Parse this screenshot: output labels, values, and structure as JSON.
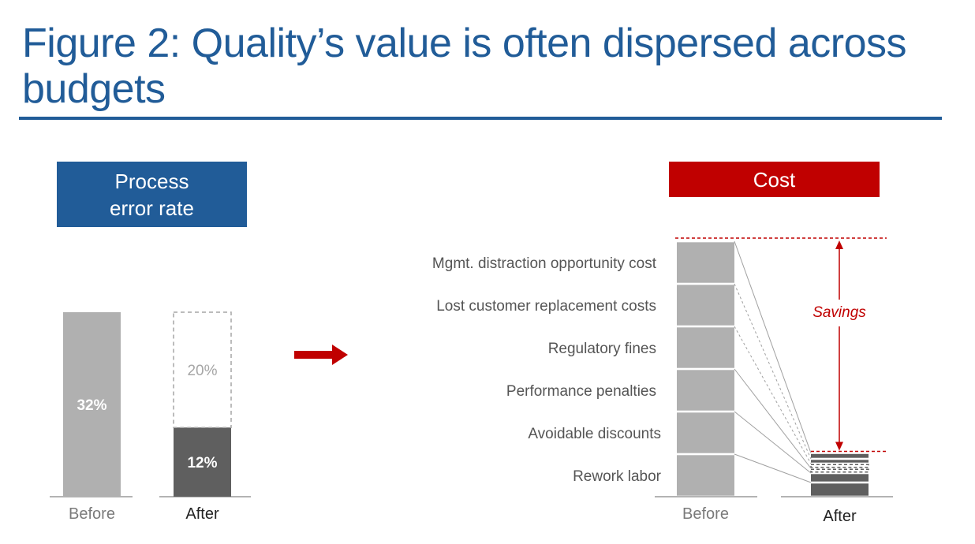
{
  "title": "Figure 2: Quality’s value is often dispersed across budgets",
  "colors": {
    "title_blue": "#215c98",
    "cost_red": "#c00000",
    "before_gray": "#b0b0b0",
    "after_dark": "#5f5f5f",
    "dashed_outline": "#a6a6a6"
  },
  "icons": {
    "transition": "right-arrow-icon"
  },
  "chart_data": [
    {
      "type": "bar",
      "title": "Process\nerror rate",
      "categories": [
        "Before",
        "After"
      ],
      "series": [
        {
          "name": "",
          "values": [
            32,
            12
          ],
          "labels": [
            "32%",
            "12%"
          ]
        },
        {
          "name": "",
          "values": [
            0,
            20
          ],
          "labels": [
            "",
            "20%"
          ],
          "style": "dashed"
        }
      ],
      "ylim": [
        0,
        32
      ],
      "grid": false
    },
    {
      "type": "bar",
      "title": "Cost",
      "categories": [
        "Before",
        "After"
      ],
      "segments": [
        {
          "label": "Rework labor",
          "before": 1,
          "after": 0.6
        },
        {
          "label": "Avoidable discounts",
          "before": 1,
          "after": 0.4
        },
        {
          "label": "Performance penalties",
          "before": 1,
          "after": 0.2
        },
        {
          "label": "Regulatory fines",
          "before": 1,
          "after": 0.2
        },
        {
          "label": "Lost customer replacement costs",
          "before": 1,
          "after": 0.2
        },
        {
          "label": "Mgmt. distraction opportunity cost",
          "before": 1,
          "after": 0.25
        }
      ],
      "annotation": "Savings",
      "grid": false
    }
  ]
}
